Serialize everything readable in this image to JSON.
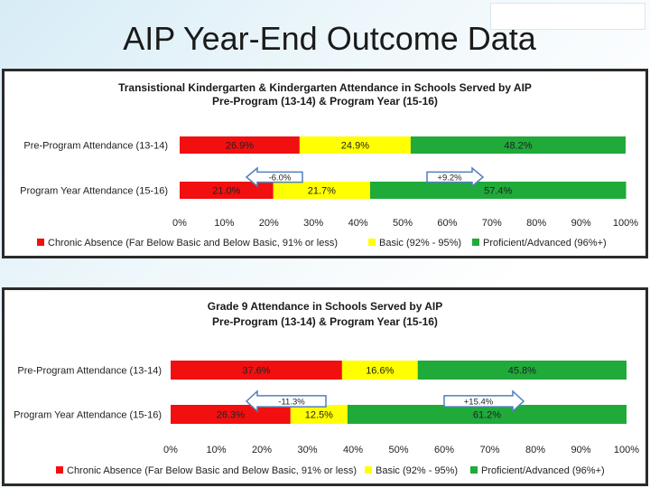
{
  "slide": {
    "title": "AIP Year-End Outcome Data"
  },
  "colors": {
    "chronic": "#f20f0f",
    "basic": "#ffff00",
    "proficient": "#1faa3a",
    "arrow_fill": "#ffffff",
    "arrow_stroke": "#4f81bd"
  },
  "chart_data": [
    {
      "type": "bar",
      "orientation": "horizontal-stacked-100",
      "title": "Transistional Kindergarten & Kindergarten Attendance in Schools Served by AIP",
      "subtitle": "Pre-Program (13-14) & Program Year (15-16)",
      "categories": [
        "Pre-Program Attendance (13-14)",
        "Program Year Attendance (15-16)"
      ],
      "series": [
        {
          "name": "Chronic Absence  (Far Below Basic and Below Basic, 91% or less)",
          "values": [
            26.9,
            21.0
          ],
          "labels": [
            "26.9%",
            "21.0%"
          ]
        },
        {
          "name": "Basic (92% - 95%)",
          "values": [
            24.9,
            21.7
          ],
          "labels": [
            "24.9%",
            "21.7%"
          ]
        },
        {
          "name": "Proficient/Advanced (96%+)",
          "values": [
            48.2,
            57.4
          ],
          "labels": [
            "48.2%",
            "57.4%"
          ]
        }
      ],
      "changes": [
        {
          "label": "-6.0%",
          "direction": "left"
        },
        {
          "label": "+9.2%",
          "direction": "right"
        }
      ],
      "xticks": [
        "0%",
        "10%",
        "20%",
        "30%",
        "40%",
        "50%",
        "60%",
        "70%",
        "80%",
        "90%",
        "100%"
      ],
      "xlim": [
        0,
        100
      ]
    },
    {
      "type": "bar",
      "orientation": "horizontal-stacked-100",
      "title": "Grade 9 Attendance in Schools Served by AIP",
      "subtitle": "Pre-Program (13-14) & Program Year (15-16)",
      "categories": [
        "Pre-Program Attendance (13-14)",
        "Program Year Attendance (15-16)"
      ],
      "series": [
        {
          "name": "Chronic Absence  (Far Below Basic and Below Basic, 91% or less)",
          "values": [
            37.6,
            26.3
          ],
          "labels": [
            "37.6%",
            "26.3%"
          ]
        },
        {
          "name": "Basic (92% - 95%)",
          "values": [
            16.6,
            12.5
          ],
          "labels": [
            "16.6%",
            "12.5%"
          ]
        },
        {
          "name": "Proficient/Advanced (96%+)",
          "values": [
            45.8,
            61.2
          ],
          "labels": [
            "45.8%",
            "61.2%"
          ]
        }
      ],
      "changes": [
        {
          "label": "-11.3%",
          "direction": "left"
        },
        {
          "label": "+15.4%",
          "direction": "right"
        }
      ],
      "xticks": [
        "0%",
        "10%",
        "20%",
        "30%",
        "40%",
        "50%",
        "60%",
        "70%",
        "80%",
        "90%",
        "100%"
      ],
      "xlim": [
        0,
        100
      ]
    }
  ]
}
